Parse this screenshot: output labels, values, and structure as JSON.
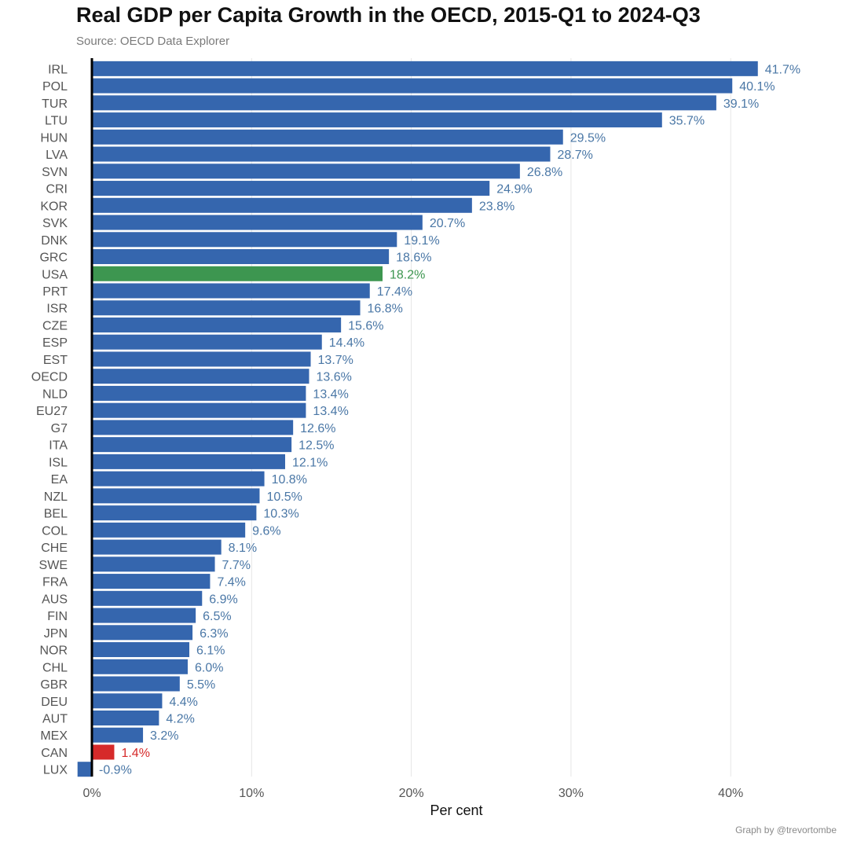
{
  "title": "Real GDP per Capita Growth in the OECD, 2015-Q1 to 2024-Q3",
  "subtitle": "Source: OECD Data Explorer",
  "credit": "Graph by @trevortombe",
  "chart_data": {
    "type": "bar",
    "orientation": "horizontal",
    "title": "Real GDP per Capita Growth in the OECD, 2015-Q1 to 2024-Q3",
    "subtitle": "Source: OECD Data Explorer",
    "xlabel": "Per cent",
    "ylabel": "",
    "xlim": [
      -1,
      45
    ],
    "x_ticks": [
      0,
      10,
      20,
      30,
      40
    ],
    "x_tick_labels": [
      "0%",
      "10%",
      "20%",
      "30%",
      "40%"
    ],
    "grid": "vertical",
    "legend": "none",
    "colors": {
      "default": "#3566ae",
      "label": "#4a77a6",
      "highlight_usa": "#3d9650",
      "highlight_can": "#d62a2a",
      "zero_line": "#000000"
    },
    "categories": [
      "IRL",
      "POL",
      "TUR",
      "LTU",
      "HUN",
      "LVA",
      "SVN",
      "CRI",
      "KOR",
      "SVK",
      "DNK",
      "GRC",
      "USA",
      "PRT",
      "ISR",
      "CZE",
      "ESP",
      "EST",
      "OECD",
      "NLD",
      "EU27",
      "G7",
      "ITA",
      "ISL",
      "EA",
      "NZL",
      "BEL",
      "COL",
      "CHE",
      "SWE",
      "FRA",
      "AUS",
      "FIN",
      "JPN",
      "NOR",
      "CHL",
      "GBR",
      "DEU",
      "AUT",
      "MEX",
      "CAN",
      "LUX"
    ],
    "values": [
      41.7,
      40.1,
      39.1,
      35.7,
      29.5,
      28.7,
      26.8,
      24.9,
      23.8,
      20.7,
      19.1,
      18.6,
      18.2,
      17.4,
      16.8,
      15.6,
      14.4,
      13.7,
      13.6,
      13.4,
      13.4,
      12.6,
      12.5,
      12.1,
      10.8,
      10.5,
      10.3,
      9.6,
      8.1,
      7.7,
      7.4,
      6.9,
      6.5,
      6.3,
      6.1,
      6.0,
      5.5,
      4.4,
      4.2,
      3.2,
      1.4,
      -0.9
    ],
    "data_labels": [
      "41.7%",
      "40.1%",
      "39.1%",
      "35.7%",
      "29.5%",
      "28.7%",
      "26.8%",
      "24.9%",
      "23.8%",
      "20.7%",
      "19.1%",
      "18.6%",
      "18.2%",
      "17.4%",
      "16.8%",
      "15.6%",
      "14.4%",
      "13.7%",
      "13.6%",
      "13.4%",
      "13.4%",
      "12.6%",
      "12.5%",
      "12.1%",
      "10.8%",
      "10.5%",
      "10.3%",
      "9.6%",
      "8.1%",
      "7.7%",
      "7.4%",
      "6.9%",
      "6.5%",
      "6.3%",
      "6.1%",
      "6.0%",
      "5.5%",
      "4.4%",
      "4.2%",
      "3.2%",
      "1.4%",
      "-0.9%"
    ],
    "highlights": {
      "USA": "highlight_usa",
      "CAN": "highlight_can"
    }
  }
}
